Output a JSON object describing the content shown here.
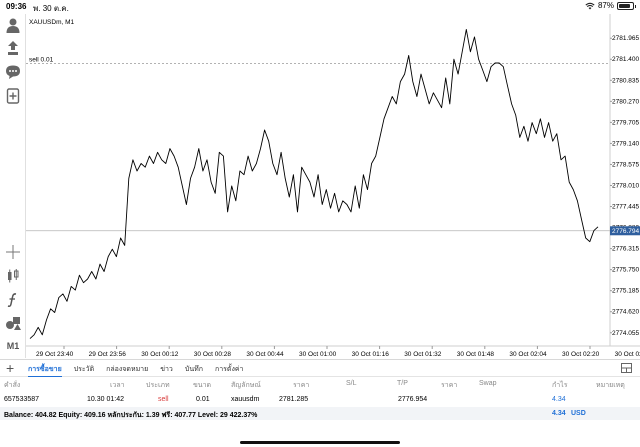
{
  "status": {
    "time": "09:36",
    "date": "พ. 30 ต.ค.",
    "battery": "87%",
    "battery_level": 0.87
  },
  "chart": {
    "symbol_label": "XAUUSDm, M1",
    "order_label": "sell 0.01",
    "current_price_label": "2776.794",
    "price_ticks": [
      "2781.965",
      "2781.400",
      "2780.835",
      "2780.270",
      "2779.705",
      "2779.140",
      "2778.575",
      "2778.010",
      "2777.445",
      "2776.880",
      "2776.315",
      "2775.750",
      "2775.185",
      "2774.620",
      "2774.055"
    ],
    "time_ticks": [
      "29 Oct 23:40",
      "29 Oct 23:56",
      "30 Oct 00:12",
      "30 Oct 00:28",
      "30 Oct 00:44",
      "30 Oct 01:00",
      "30 Oct 01:16",
      "30 Oct 01:32",
      "30 Oct 01:48",
      "30 Oct 02:04",
      "30 Oct 02:20",
      "30 Oct 02:36"
    ],
    "timeframe": "M1",
    "colors": {
      "line": "#000000",
      "order_line": "#999999",
      "current_price_bg": "#2f5f9e"
    }
  },
  "chart_data": {
    "type": "line",
    "title": "XAUUSDm, M1",
    "xlabel": "",
    "ylabel": "",
    "x_range": [
      "29 Oct 23:36",
      "30 Oct 02:36"
    ],
    "ylim": [
      2773.7,
      2782.4
    ],
    "order_price": 2781.285,
    "current_price": 2776.794,
    "values": [
      2773.9,
      2774.0,
      2774.2,
      2774.0,
      2774.4,
      2774.7,
      2774.6,
      2775.0,
      2775.1,
      2774.9,
      2775.3,
      2775.2,
      2775.6,
      2775.4,
      2775.5,
      2775.7,
      2775.5,
      2775.9,
      2775.7,
      2776.1,
      2776.3,
      2776.1,
      2776.6,
      2776.4,
      2778.2,
      2778.7,
      2778.4,
      2778.6,
      2778.5,
      2778.8,
      2778.6,
      2778.9,
      2778.7,
      2778.6,
      2779.0,
      2778.8,
      2778.5,
      2778.0,
      2777.5,
      2778.2,
      2778.5,
      2779.0,
      2778.4,
      2778.7,
      2778.1,
      2777.8,
      2778.9,
      2778.8,
      2777.3,
      2778.0,
      2777.6,
      2778.4,
      2778.3,
      2778.8,
      2778.4,
      2778.6,
      2779.0,
      2779.5,
      2779.2,
      2778.6,
      2778.3,
      2778.9,
      2778.2,
      2777.7,
      2778.3,
      2777.3,
      2778.5,
      2778.3,
      2778.1,
      2777.7,
      2778.3,
      2777.5,
      2777.9,
      2777.4,
      2777.8,
      2777.3,
      2777.6,
      2777.5,
      2777.3,
      2778.0,
      2777.4,
      2778.3,
      2777.9,
      2778.6,
      2778.8,
      2779.3,
      2779.8,
      2780.1,
      2780.4,
      2780.2,
      2780.8,
      2781.0,
      2781.5,
      2780.8,
      2780.4,
      2781.0,
      2780.6,
      2780.2,
      2780.5,
      2780.3,
      2780.1,
      2780.9,
      2780.2,
      2781.4,
      2781.0,
      2781.6,
      2782.2,
      2781.6,
      2782.0,
      2781.4,
      2781.1,
      2780.8,
      2781.2,
      2781.3,
      2781.3,
      2781.2,
      2780.7,
      2780.2,
      2779.9,
      2779.3,
      2779.6,
      2779.2,
      2779.7,
      2779.4,
      2779.8,
      2779.3,
      2779.7,
      2779.2,
      2779.4,
      2778.7,
      2778.8,
      2778.1,
      2777.9,
      2777.6,
      2777.1,
      2776.6,
      2776.5,
      2776.8,
      2776.9
    ],
    "grid": false,
    "legend": "none"
  },
  "toolbar": {
    "icons": [
      "account-icon",
      "trade-icon",
      "chat-icon",
      "add-document-icon",
      "crosshair-icon",
      "indicators-icon",
      "function-icon",
      "objects-icon"
    ],
    "timeframe": "M1"
  },
  "tabs": [
    "การซื้อขาย",
    "ประวัติ",
    "กล่องจดหมาย",
    "ข่าว",
    "บันทึก",
    "การตั้งค่า"
  ],
  "table": {
    "headers": [
      "คำสั่ง",
      "เวลา",
      "ประเภท",
      "ขนาด",
      "สัญลักษณ์",
      "ราคา",
      "S/L",
      "T/P",
      "ราคา",
      "Swap",
      "กำไร",
      "หมายเหตุ"
    ],
    "rows": [
      {
        "order": "657533587",
        "time": "10.30 01:42",
        "type": "sell",
        "size": "0.01",
        "symbol": "xauusdm",
        "price": "2781.285",
        "sl": "",
        "tp": "",
        "current": "2776.954",
        "swap": "",
        "profit": "4.34",
        "comment": ""
      }
    ],
    "balance_text": "Balance: 404.82 Equity: 409.16 หลักประกัน: 1.39 ฟรี: 407.77 Level: 29 422.37%",
    "total_profit": "4.34",
    "currency": "USD"
  }
}
